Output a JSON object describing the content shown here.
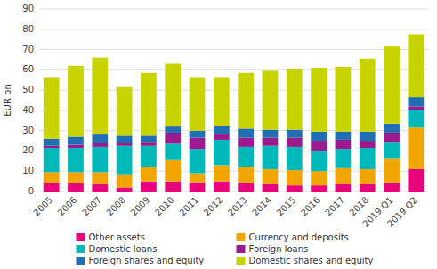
{
  "chart_data": {
    "type": "bar",
    "stacked": true,
    "categories": [
      "2005",
      "2006",
      "2007",
      "2008",
      "2009",
      "2010",
      "2011",
      "2012",
      "2013",
      "2014",
      "2015",
      "2016",
      "2017",
      "2018",
      "2019 Q1",
      "2019 Q2"
    ],
    "series": [
      {
        "name": "Other assets",
        "color": "#e8007d",
        "values": [
          4.0,
          4.0,
          3.5,
          2.0,
          5.0,
          5.0,
          4.5,
          5.0,
          4.5,
          3.5,
          3.0,
          3.0,
          3.5,
          3.5,
          4.5,
          11.0
        ]
      },
      {
        "name": "Currency and deposits",
        "color": "#f0a500",
        "values": [
          5.5,
          5.5,
          6.0,
          6.5,
          7.0,
          10.5,
          4.5,
          8.0,
          7.5,
          7.5,
          7.5,
          7.0,
          8.0,
          7.5,
          12.0,
          20.5
        ]
      },
      {
        "name": "Domestic loans",
        "color": "#00b8b8",
        "values": [
          12.0,
          12.0,
          12.5,
          14.0,
          10.5,
          8.0,
          12.0,
          12.5,
          10.0,
          11.5,
          11.5,
          10.0,
          9.5,
          10.5,
          8.0,
          8.5
        ]
      },
      {
        "name": "Foreign loans",
        "color": "#9b1b8e",
        "values": [
          1.0,
          1.5,
          2.0,
          1.5,
          2.0,
          5.5,
          5.5,
          3.0,
          4.5,
          4.0,
          4.5,
          5.0,
          4.5,
          3.5,
          4.5,
          2.0
        ]
      },
      {
        "name": "Foreign shares and equity",
        "color": "#1f6fb2",
        "values": [
          3.5,
          4.0,
          4.5,
          3.5,
          3.0,
          3.0,
          3.5,
          4.0,
          4.5,
          4.0,
          4.0,
          4.5,
          4.0,
          4.5,
          4.5,
          4.5
        ]
      },
      {
        "name": "Domestic shares and equity",
        "color": "#c8d400",
        "values": [
          30.0,
          35.0,
          37.5,
          24.0,
          31.0,
          31.0,
          26.0,
          23.5,
          27.5,
          29.0,
          30.0,
          31.5,
          32.0,
          36.0,
          38.0,
          31.0
        ]
      }
    ],
    "ylabel": "EUR bn",
    "ylim": [
      0,
      90
    ],
    "yticks": [
      0,
      10,
      20,
      30,
      40,
      50,
      60,
      70,
      80,
      90
    ],
    "grid": true,
    "legend": "bottom"
  }
}
